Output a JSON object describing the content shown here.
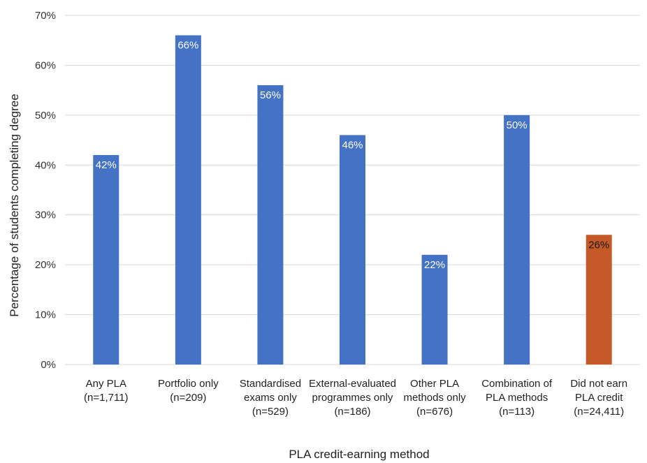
{
  "chart_data": {
    "type": "bar",
    "title": "",
    "xlabel": "PLA credit-earning method",
    "ylabel": "Percentage of students completing degree",
    "ylim": [
      0,
      70
    ],
    "yticks": [
      "0%",
      "10%",
      "20%",
      "30%",
      "40%",
      "50%",
      "60%",
      "70%"
    ],
    "grid": true,
    "categories": [
      [
        "Any PLA",
        "(n=1,711)"
      ],
      [
        "Portfolio only",
        "(n=209)"
      ],
      [
        "Standardised",
        "exams only",
        "(n=529)"
      ],
      [
        "External-evaluated",
        "programmes only",
        "(n=186)"
      ],
      [
        "Other PLA",
        "methods only",
        "(n=676)"
      ],
      [
        "Combination of",
        "PLA methods",
        "(n=113)"
      ],
      [
        "Did not earn",
        "PLA credit",
        "(n=24,411)"
      ]
    ],
    "values": [
      42,
      66,
      56,
      46,
      22,
      50,
      26
    ],
    "data_labels": [
      "42%",
      "66%",
      "56%",
      "46%",
      "22%",
      "50%",
      "26%"
    ],
    "colors": [
      "#4472C4",
      "#4472C4",
      "#4472C4",
      "#4472C4",
      "#4472C4",
      "#4472C4",
      "#C55A28"
    ],
    "label_colors": [
      "#ffffff",
      "#ffffff",
      "#ffffff",
      "#ffffff",
      "#ffffff",
      "#ffffff",
      "#1a1a1a"
    ]
  }
}
